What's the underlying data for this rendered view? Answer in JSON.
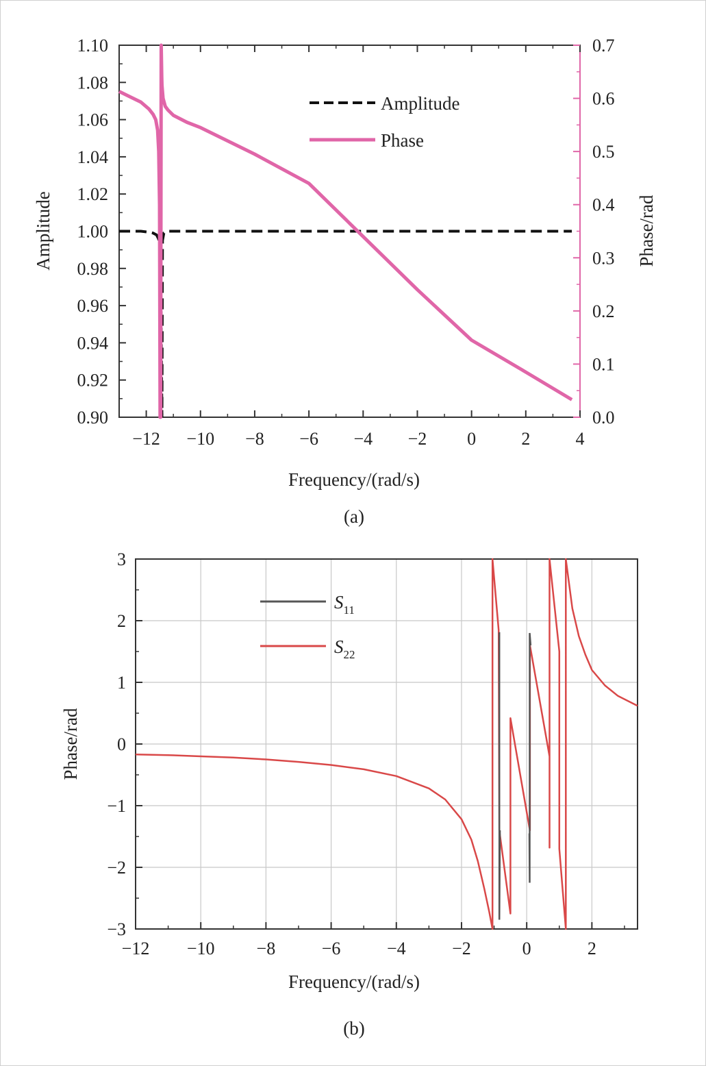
{
  "chart_data": [
    {
      "panel": "a",
      "caption": "(a)",
      "type": "line",
      "xlabel": "Frequency/(rad/s)",
      "ylabel": "Amplitude",
      "y2label": "Phase/rad",
      "xlim": [
        -13,
        4
      ],
      "ylim": [
        0.9,
        1.1
      ],
      "y2lim": [
        0.0,
        0.7
      ],
      "xticks": [
        -12,
        -10,
        -8,
        -6,
        -4,
        -2,
        0,
        2,
        4
      ],
      "xtick_labels": [
        "−12",
        "−10",
        "−8",
        "−6",
        "−4",
        "−2",
        "0",
        "2",
        "4"
      ],
      "yticks": [
        0.9,
        0.92,
        0.94,
        0.96,
        0.98,
        1.0,
        1.02,
        1.04,
        1.06,
        1.08,
        1.1
      ],
      "ytick_labels": [
        "0.90",
        "0.92",
        "0.94",
        "0.96",
        "0.98",
        "1.00",
        "1.02",
        "1.04",
        "1.06",
        "1.08",
        "1.10"
      ],
      "y2ticks": [
        0.0,
        0.1,
        0.2,
        0.3,
        0.4,
        0.5,
        0.6,
        0.7
      ],
      "y2tick_labels": [
        "0.0",
        "0.1",
        "0.2",
        "0.3",
        "0.4",
        "0.5",
        "0.6",
        "0.7"
      ],
      "legend": "top-right",
      "colors": {
        "amplitude": "#111111",
        "phase": "#e066a8",
        "right_axis": "#e066a8"
      },
      "series": [
        {
          "name": "Amplitude",
          "axis": "left",
          "style": "dashed",
          "x": [
            -13,
            -12.2,
            -11.9,
            -11.75,
            -11.62,
            -11.55,
            -11.5,
            -11.48,
            -11.46,
            -11.44,
            -11.42,
            -11.4,
            -11.35,
            -11.2,
            -10,
            -5,
            0,
            3.7
          ],
          "y": [
            1.0,
            1.0,
            0.9995,
            0.999,
            0.998,
            0.996,
            0.993,
            0.985,
            0.97,
            0.93,
            0.9,
            0.995,
            0.999,
            1.0,
            1.0,
            1.0,
            1.0,
            1.0
          ]
        },
        {
          "name": "Phase",
          "axis": "right",
          "style": "solid",
          "x": [
            -13,
            -12.6,
            -12.2,
            -11.9,
            -11.75,
            -11.65,
            -11.58,
            -11.54,
            -11.51,
            -11.49,
            -11.47,
            -11.45,
            -11.44,
            -11.43,
            -11.42,
            -11.38,
            -11.3,
            -11.2,
            -11.0,
            -10.5,
            -10.0,
            -8,
            -6,
            -4,
            -2,
            0,
            2,
            3.7
          ],
          "y": [
            0.613,
            0.603,
            0.593,
            0.58,
            0.57,
            0.56,
            0.54,
            0.5,
            0.4,
            0.0,
            0.0,
            0.7,
            0.67,
            0.64,
            0.625,
            0.6,
            0.585,
            0.578,
            0.568,
            0.555,
            0.545,
            0.495,
            0.44,
            0.34,
            0.24,
            0.145,
            0.085,
            0.033
          ]
        }
      ]
    },
    {
      "panel": "b",
      "caption": "(b)",
      "type": "line",
      "xlabel": "Frequency/(rad/s)",
      "ylabel": "Phase/rad",
      "xlim": [
        -12,
        3.4
      ],
      "ylim": [
        -3,
        3
      ],
      "grid": true,
      "xticks": [
        -12,
        -10,
        -8,
        -6,
        -4,
        -2,
        0,
        2
      ],
      "xtick_labels": [
        "−12",
        "−10",
        "−8",
        "−6",
        "−4",
        "−2",
        "0",
        "2"
      ],
      "yticks": [
        -3,
        -2,
        -1,
        0,
        1,
        2,
        3
      ],
      "ytick_labels": [
        "−3",
        "−2",
        "−1",
        "0",
        "1",
        "2",
        "3"
      ],
      "legend": "top-left",
      "colors": {
        "s11": "#555555",
        "s22": "#d94848"
      },
      "series": [
        {
          "name": "S",
          "subscript": "11",
          "x": [
            -0.86,
            -0.84,
            -0.84,
            -0.82,
            0.08,
            0.09,
            0.09,
            0.12
          ],
          "y": [
            1.8,
            1.8,
            -2.85,
            -1.4,
            -1.45,
            -2.25,
            1.8,
            1.6
          ]
        },
        {
          "name": "S",
          "subscript": "22",
          "x": [
            -12,
            -11,
            -10,
            -9,
            -8,
            -7,
            -6,
            -5,
            -4,
            -3,
            -2.5,
            -2,
            -1.7,
            -1.5,
            -1.3,
            -1.15,
            -1.05,
            -1.05,
            -0.86,
            -0.84,
            -0.5,
            -0.5,
            0.08,
            0.1,
            0.1,
            0.7,
            0.7,
            0.7,
            1.0,
            1.0,
            1.2,
            1.2,
            1.4,
            1.6,
            1.8,
            2.0,
            2.4,
            2.8,
            3.4
          ],
          "y": [
            -0.17,
            -0.18,
            -0.2,
            -0.22,
            -0.25,
            -0.29,
            -0.34,
            -0.41,
            -0.52,
            -0.72,
            -0.9,
            -1.22,
            -1.55,
            -1.9,
            -2.35,
            -2.72,
            -3.0,
            3.0,
            1.85,
            -1.4,
            -2.75,
            0.42,
            -1.35,
            -1.4,
            1.6,
            -0.2,
            -1.68,
            3.0,
            1.5,
            -1.7,
            -3.0,
            3.0,
            2.2,
            1.75,
            1.45,
            1.2,
            0.95,
            0.78,
            0.62
          ]
        }
      ]
    }
  ]
}
